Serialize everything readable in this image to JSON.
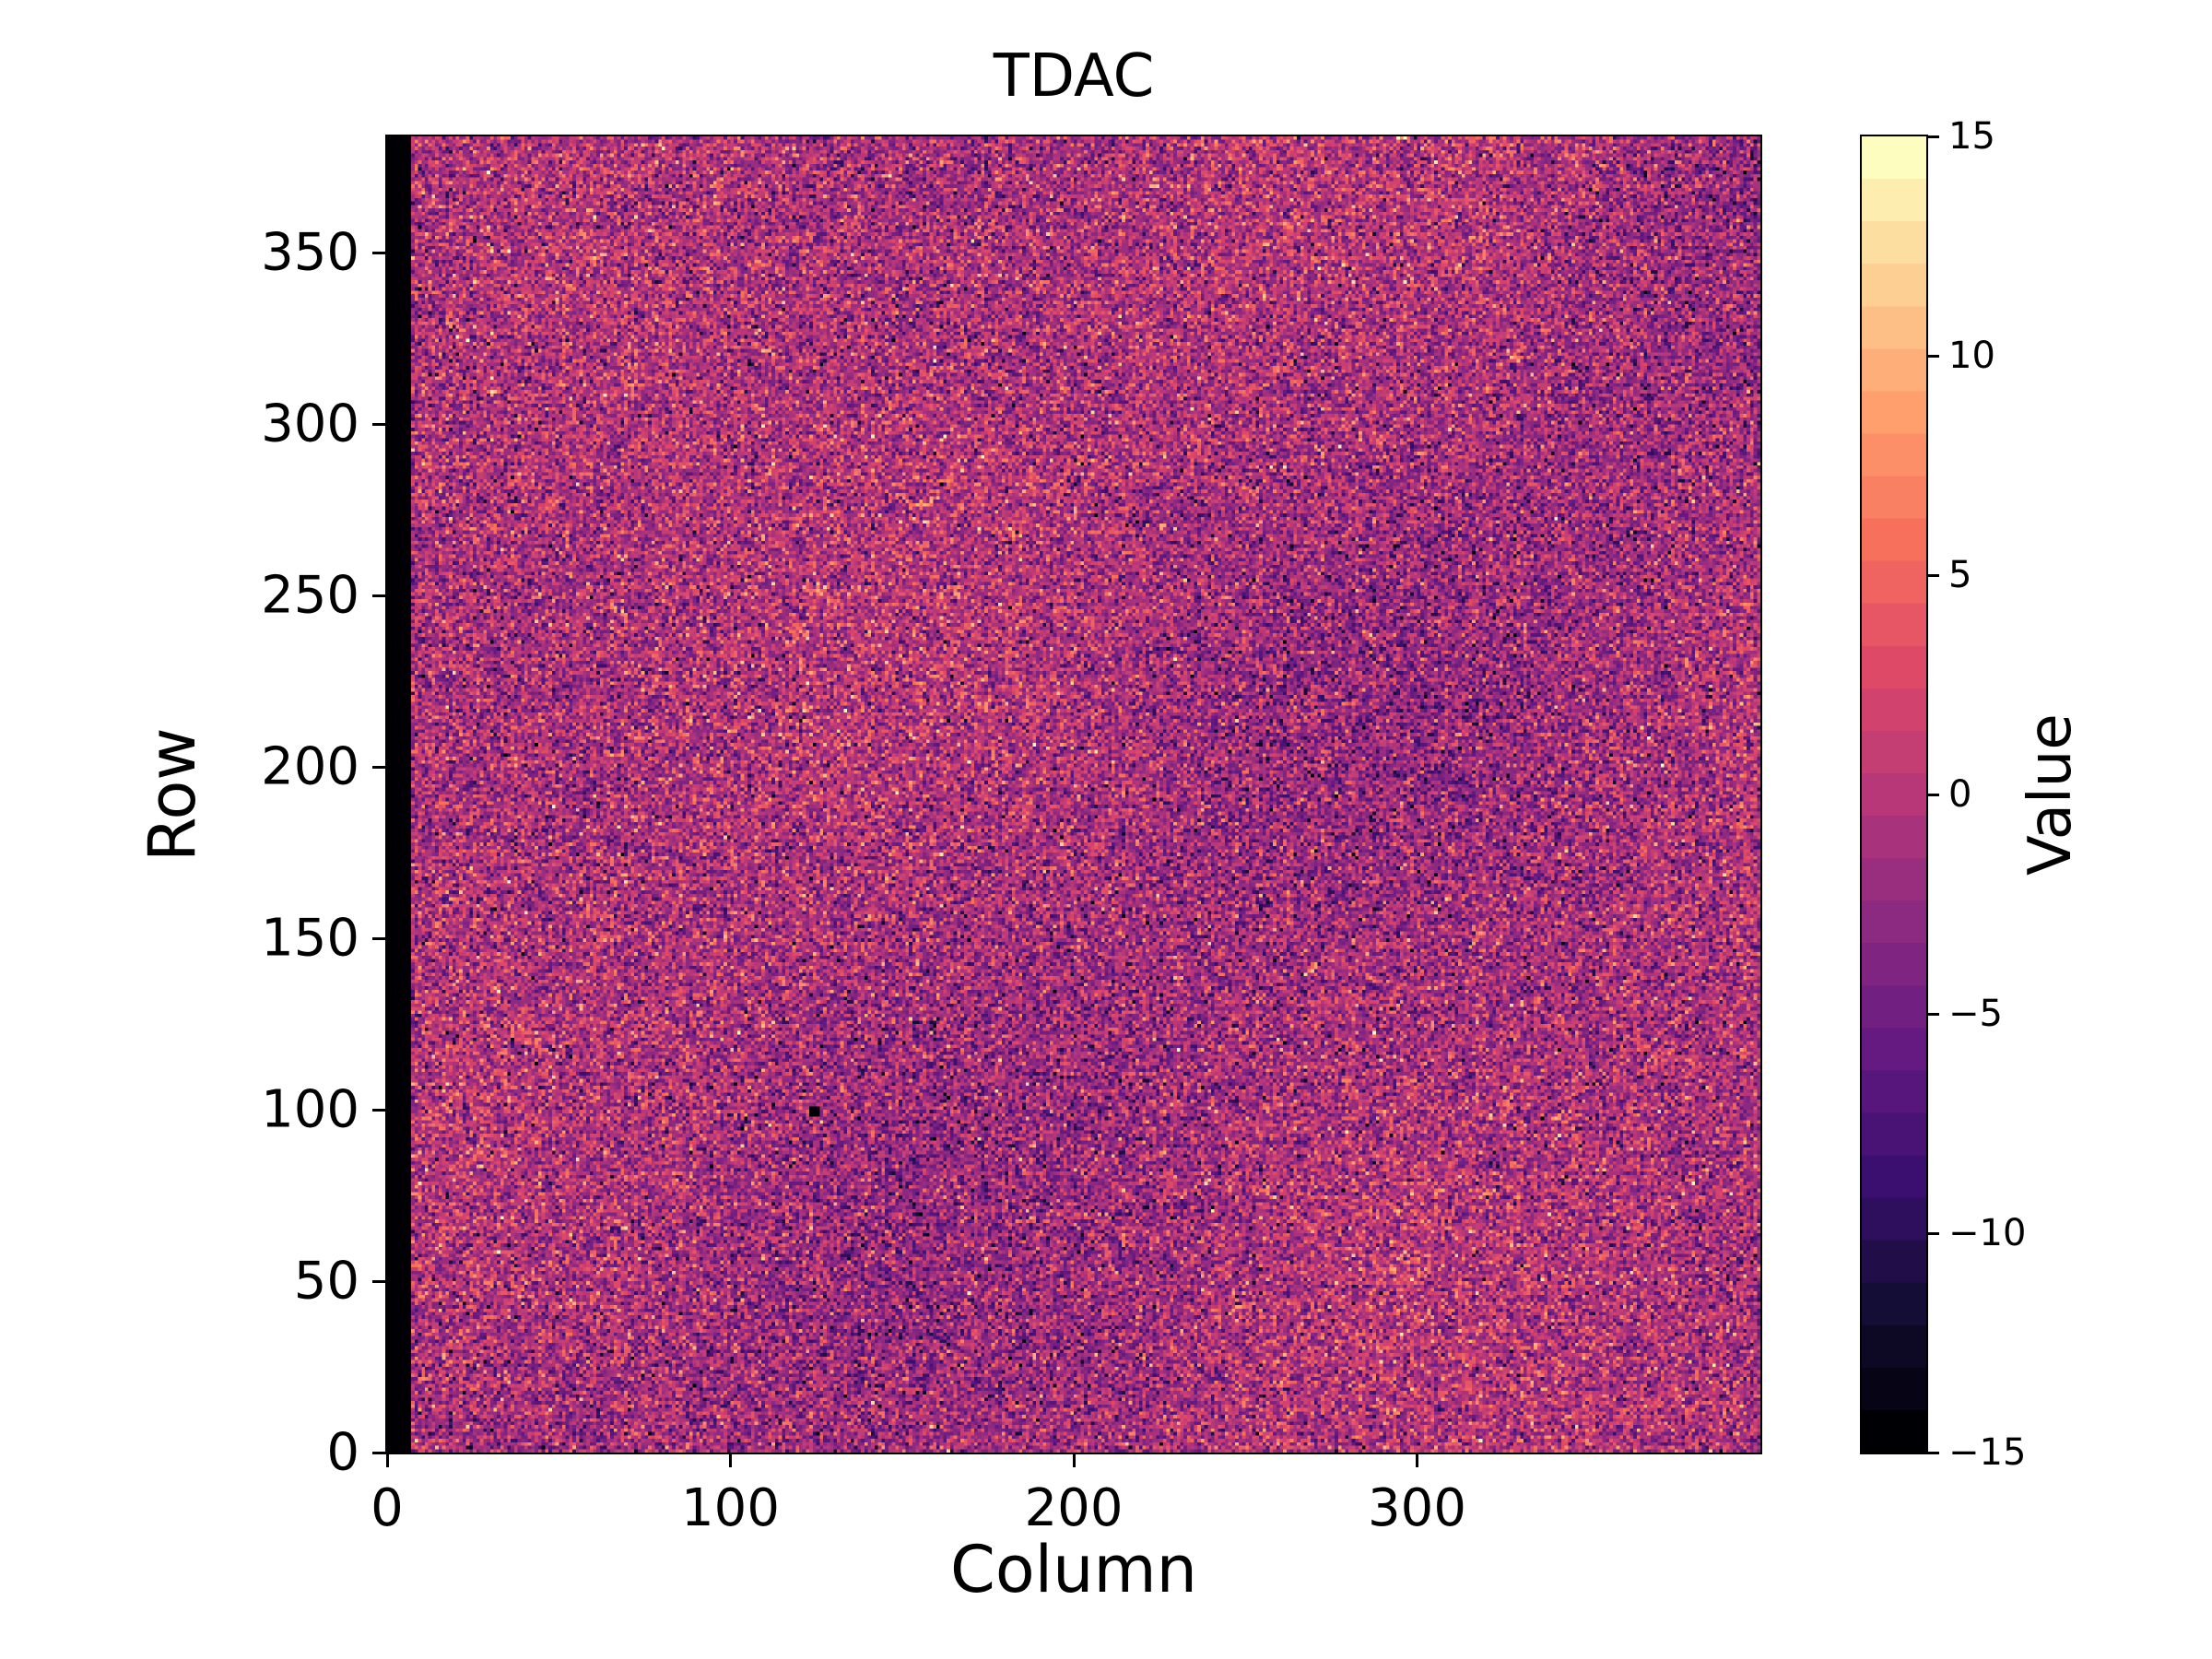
{
  "figure": {
    "background": "#ffffff",
    "text_color": "#000000"
  },
  "chart_data": {
    "type": "heatmap",
    "title": "TDAC",
    "xlabel": "Column",
    "ylabel": "Row",
    "colorbar_label": "Value",
    "xlim": [
      0,
      400
    ],
    "ylim": [
      0,
      384
    ],
    "vmin": -15,
    "vmax": 15,
    "n_cols": 400,
    "n_rows": 384,
    "levels": 31,
    "x_ticks": [
      {
        "value": 0,
        "label": "0"
      },
      {
        "value": 100,
        "label": "100"
      },
      {
        "value": 200,
        "label": "200"
      },
      {
        "value": 300,
        "label": "300"
      }
    ],
    "y_ticks": [
      {
        "value": 0,
        "label": "0"
      },
      {
        "value": 50,
        "label": "50"
      },
      {
        "value": 100,
        "label": "100"
      },
      {
        "value": 150,
        "label": "150"
      },
      {
        "value": 200,
        "label": "200"
      },
      {
        "value": 250,
        "label": "250"
      },
      {
        "value": 300,
        "label": "300"
      },
      {
        "value": 350,
        "label": "350"
      }
    ],
    "colorbar_ticks": [
      {
        "value": 15,
        "label": "15"
      },
      {
        "value": 10,
        "label": "10"
      },
      {
        "value": 5,
        "label": "5"
      },
      {
        "value": 0,
        "label": "0"
      },
      {
        "value": -5,
        "label": "−5"
      },
      {
        "value": -10,
        "label": "−10"
      },
      {
        "value": -15,
        "label": "−15"
      }
    ],
    "colormap": "magma",
    "colormap_stops": [
      [
        0.0,
        "#000004"
      ],
      [
        0.1,
        "#140e36"
      ],
      [
        0.2,
        "#3b0f70"
      ],
      [
        0.3,
        "#641a80"
      ],
      [
        0.4,
        "#8c2981"
      ],
      [
        0.5,
        "#b73779"
      ],
      [
        0.6,
        "#de4968"
      ],
      [
        0.7,
        "#f7705c"
      ],
      [
        0.8,
        "#fe9f6d"
      ],
      [
        0.9,
        "#fecf92"
      ],
      [
        1.0,
        "#fcfdbf"
      ]
    ],
    "noise": {
      "distribution": "gaussian",
      "mean": -1.0,
      "std": 4.2,
      "clip": [
        -15,
        15
      ],
      "integer": true,
      "seed": 42
    },
    "left_strip": {
      "cols": 7,
      "value": -15
    },
    "anomalies": [
      {
        "col": 123,
        "row": 100,
        "value": -15,
        "size": 3
      }
    ],
    "description": "Per-pixel integer TDAC tuning values; random noise centered near 0 (purple/magenta with sparse orange and white speckles), leftmost columns saturated at -15 (black strip)."
  }
}
